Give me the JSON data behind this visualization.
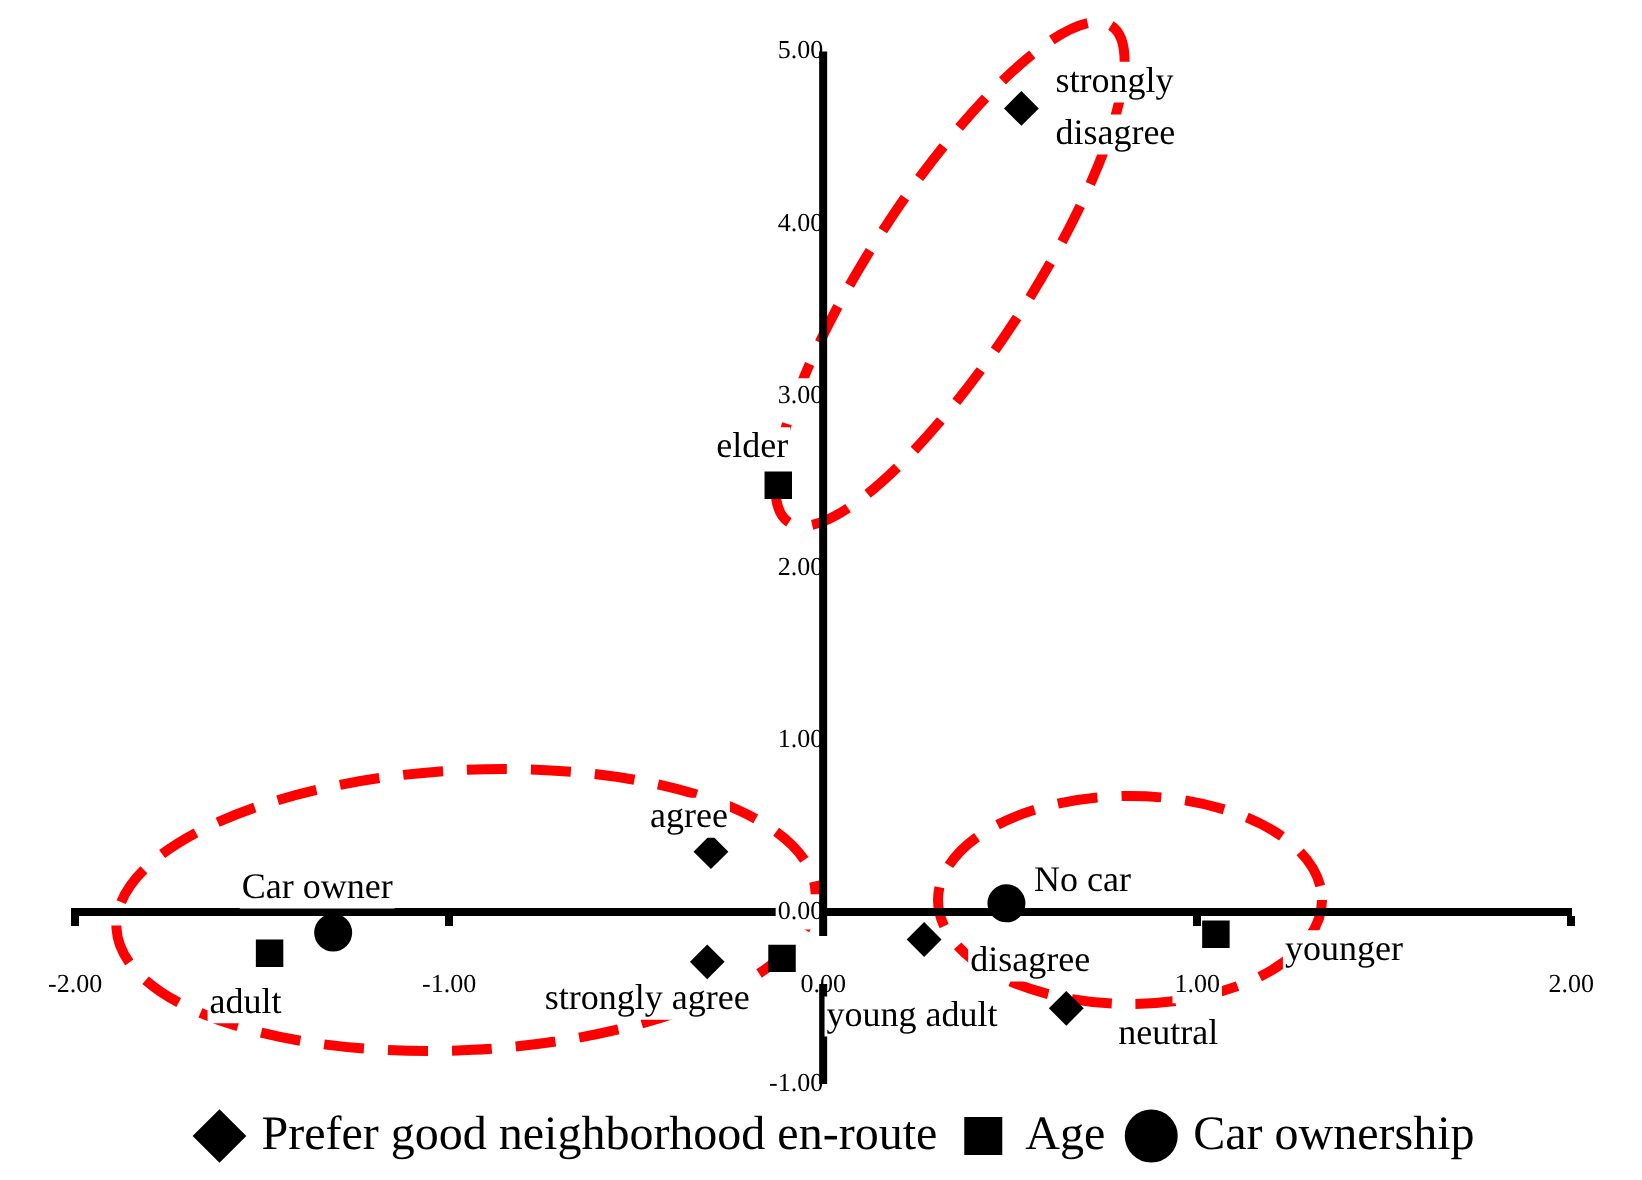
{
  "chart_data": {
    "type": "scatter",
    "xlim": [
      -2,
      2
    ],
    "ylim": [
      -1,
      5
    ],
    "xticks": [
      {
        "value": -2,
        "label": "-2.00"
      },
      {
        "value": -1,
        "label": "-1.00"
      },
      {
        "value": 0,
        "label": "0.00"
      },
      {
        "value": 1,
        "label": "1.00"
      },
      {
        "value": 2,
        "label": "2.00"
      }
    ],
    "yticks": [
      {
        "value": -1,
        "label": "-1.00"
      },
      {
        "value": 0,
        "label": "0.00"
      },
      {
        "value": 1,
        "label": "1.00"
      },
      {
        "value": 2,
        "label": "2.00"
      },
      {
        "value": 3,
        "label": "3.00"
      },
      {
        "value": 4,
        "label": "4.00"
      },
      {
        "value": 5,
        "label": "5.00"
      }
    ],
    "series": [
      {
        "name": "Prefer good neighborhood en-route",
        "color": "#000000",
        "marker": "diamond",
        "x": [
          0.53,
          -0.3,
          -0.31,
          0.27,
          0.65
        ],
        "values": [
          4.67,
          0.35,
          -0.29,
          -0.16,
          -0.56
        ]
      },
      {
        "name": "Age",
        "color": "#000000",
        "marker": "square",
        "x": [
          -0.12,
          -1.48,
          -0.11,
          1.05
        ],
        "values": [
          2.48,
          -0.24,
          -0.27,
          -0.13
        ]
      },
      {
        "name": "Car ownership",
        "color": "#000000",
        "marker": "circle",
        "x": [
          -1.31,
          0.49
        ],
        "values": [
          -0.12,
          0.05
        ]
      }
    ],
    "annotations": [
      {
        "text": "strongly disagree",
        "x": 0.53,
        "y": 4.67
      },
      {
        "text": "agree",
        "x": -0.3,
        "y": 0.35
      },
      {
        "text": "strongly agree",
        "x": -0.31,
        "y": -0.29
      },
      {
        "text": "disagree",
        "x": 0.27,
        "y": -0.16
      },
      {
        "text": "neutral",
        "x": 0.65,
        "y": -0.56
      },
      {
        "text": "elder",
        "x": -0.12,
        "y": 2.48
      },
      {
        "text": "adult",
        "x": -1.48,
        "y": -0.24
      },
      {
        "text": "young adult",
        "x": -0.11,
        "y": -0.27
      },
      {
        "text": "younger",
        "x": 1.05,
        "y": -0.13
      },
      {
        "text": "Car owner",
        "x": -1.31,
        "y": -0.12
      },
      {
        "text": "No car",
        "x": 0.49,
        "y": 0.05
      }
    ],
    "grid": false,
    "legend": "bottom"
  }
}
